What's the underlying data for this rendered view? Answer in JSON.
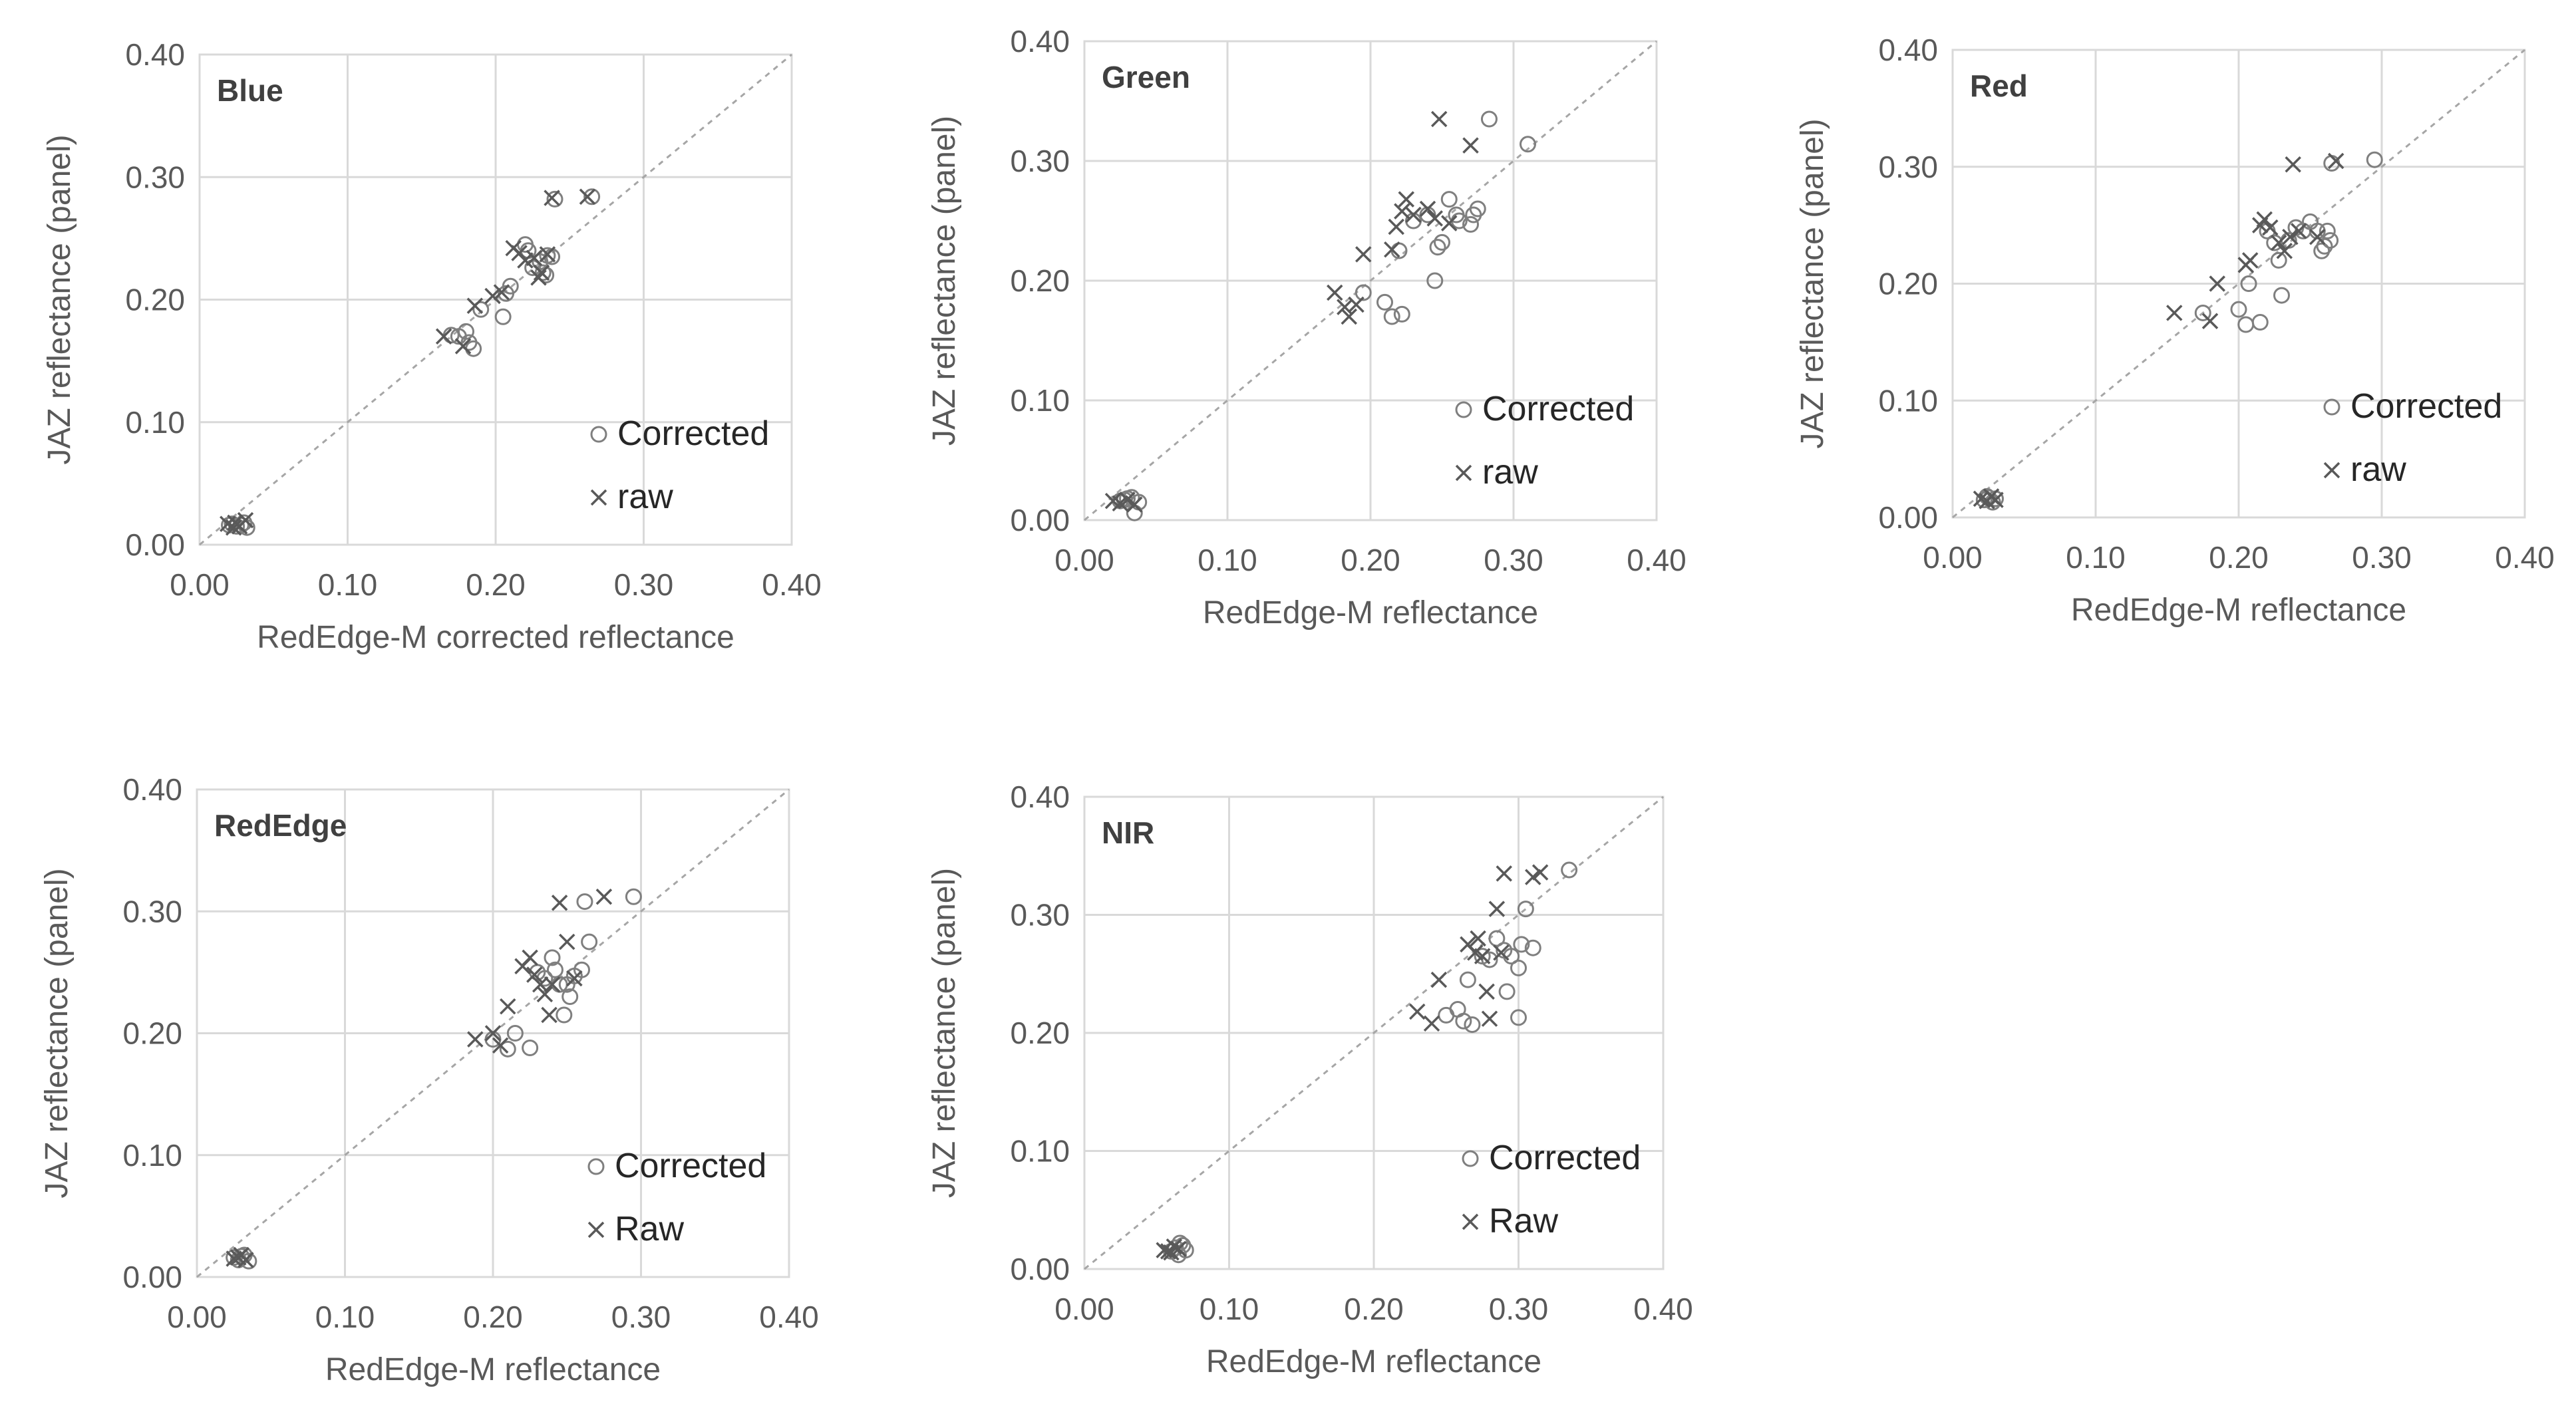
{
  "chart_data": [
    {
      "type": "scatter",
      "title": "Blue",
      "xlabel": "RedEdge-M corrected reflectance",
      "ylabel": "JAZ reflectance (panel)",
      "xlim": [
        0,
        0.4
      ],
      "ylim": [
        0,
        0.4
      ],
      "xticks": [
        "0.00",
        "0.10",
        "0.20",
        "0.30",
        "0.40"
      ],
      "yticks": [
        "0.00",
        "0.10",
        "0.20",
        "0.30",
        "0.40"
      ],
      "reference_line": "1:1",
      "legend": {
        "position": "bottom-right",
        "entries": [
          "Corrected",
          "raw"
        ]
      },
      "series": [
        {
          "name": "Corrected",
          "marker": "circle",
          "x": [
            0.02,
            0.025,
            0.03,
            0.032,
            0.022,
            0.028,
            0.17,
            0.175,
            0.18,
            0.185,
            0.182,
            0.19,
            0.205,
            0.207,
            0.21,
            0.22,
            0.222,
            0.225,
            0.23,
            0.232,
            0.235,
            0.238,
            0.234,
            0.24,
            0.265
          ],
          "y": [
            0.016,
            0.015,
            0.018,
            0.014,
            0.017,
            0.016,
            0.171,
            0.17,
            0.174,
            0.16,
            0.165,
            0.192,
            0.186,
            0.205,
            0.211,
            0.245,
            0.24,
            0.226,
            0.231,
            0.222,
            0.236,
            0.235,
            0.22,
            0.282,
            0.284
          ]
        },
        {
          "name": "raw",
          "marker": "cross",
          "x": [
            0.019,
            0.024,
            0.027,
            0.031,
            0.023,
            0.165,
            0.178,
            0.186,
            0.198,
            0.204,
            0.212,
            0.216,
            0.22,
            0.226,
            0.229,
            0.231,
            0.235,
            0.238,
            0.262
          ],
          "y": [
            0.017,
            0.018,
            0.015,
            0.02,
            0.014,
            0.17,
            0.162,
            0.195,
            0.203,
            0.206,
            0.242,
            0.238,
            0.232,
            0.234,
            0.218,
            0.222,
            0.237,
            0.283,
            0.284
          ]
        }
      ]
    },
    {
      "type": "scatter",
      "title": "Green",
      "xlabel": "RedEdge-M reflectance",
      "ylabel": "JAZ reflectance (panel)",
      "xlim": [
        0,
        0.4
      ],
      "ylim": [
        0,
        0.4
      ],
      "xticks": [
        "0.00",
        "0.10",
        "0.20",
        "0.30",
        "0.40"
      ],
      "yticks": [
        "0.00",
        "0.10",
        "0.20",
        "0.30",
        "0.40"
      ],
      "reference_line": "1:1",
      "legend": {
        "position": "bottom-right",
        "entries": [
          "Corrected",
          "raw"
        ]
      },
      "series": [
        {
          "name": "Corrected",
          "marker": "circle",
          "x": [
            0.025,
            0.03,
            0.035,
            0.038,
            0.033,
            0.028,
            0.195,
            0.21,
            0.215,
            0.22,
            0.222,
            0.23,
            0.24,
            0.245,
            0.247,
            0.25,
            0.255,
            0.26,
            0.262,
            0.27,
            0.272,
            0.275,
            0.283,
            0.31
          ],
          "y": [
            0.016,
            0.018,
            0.006,
            0.015,
            0.019,
            0.017,
            0.19,
            0.182,
            0.17,
            0.225,
            0.172,
            0.25,
            0.255,
            0.2,
            0.228,
            0.232,
            0.268,
            0.255,
            0.25,
            0.247,
            0.255,
            0.26,
            0.335,
            0.314
          ]
        },
        {
          "name": "raw",
          "marker": "cross",
          "x": [
            0.02,
            0.025,
            0.03,
            0.035,
            0.175,
            0.182,
            0.185,
            0.19,
            0.195,
            0.215,
            0.218,
            0.222,
            0.225,
            0.23,
            0.24,
            0.245,
            0.248,
            0.255,
            0.27
          ],
          "y": [
            0.016,
            0.014,
            0.017,
            0.013,
            0.19,
            0.178,
            0.17,
            0.18,
            0.222,
            0.226,
            0.245,
            0.258,
            0.268,
            0.255,
            0.26,
            0.252,
            0.335,
            0.248,
            0.313
          ]
        }
      ]
    },
    {
      "type": "scatter",
      "title": "Red",
      "xlabel": "RedEdge-M reflectance",
      "ylabel": "JAZ reflectance (panel)",
      "xlim": [
        0,
        0.4
      ],
      "ylim": [
        0,
        0.4
      ],
      "xticks": [
        "0.00",
        "0.10",
        "0.20",
        "0.30",
        "0.40"
      ],
      "yticks": [
        "0.00",
        "0.10",
        "0.20",
        "0.30",
        "0.40"
      ],
      "reference_line": "1:1",
      "legend": {
        "position": "bottom-right",
        "entries": [
          "Corrected",
          "raw"
        ]
      },
      "series": [
        {
          "name": "Corrected",
          "marker": "circle",
          "x": [
            0.022,
            0.025,
            0.028,
            0.03,
            0.024,
            0.175,
            0.2,
            0.205,
            0.207,
            0.215,
            0.22,
            0.225,
            0.228,
            0.23,
            0.235,
            0.24,
            0.245,
            0.25,
            0.255,
            0.258,
            0.26,
            0.262,
            0.264,
            0.265,
            0.295
          ],
          "y": [
            0.015,
            0.017,
            0.013,
            0.016,
            0.018,
            0.175,
            0.178,
            0.165,
            0.2,
            0.167,
            0.245,
            0.235,
            0.22,
            0.19,
            0.237,
            0.248,
            0.245,
            0.253,
            0.245,
            0.228,
            0.232,
            0.245,
            0.237,
            0.303,
            0.306
          ]
        },
        {
          "name": "raw",
          "marker": "cross",
          "x": [
            0.02,
            0.024,
            0.027,
            0.03,
            0.155,
            0.18,
            0.185,
            0.205,
            0.208,
            0.215,
            0.218,
            0.222,
            0.228,
            0.232,
            0.236,
            0.238,
            0.242,
            0.255,
            0.268
          ],
          "y": [
            0.016,
            0.014,
            0.018,
            0.015,
            0.175,
            0.168,
            0.2,
            0.216,
            0.22,
            0.25,
            0.255,
            0.248,
            0.235,
            0.228,
            0.24,
            0.302,
            0.245,
            0.24,
            0.305
          ]
        }
      ]
    },
    {
      "type": "scatter",
      "title": "RedEdge",
      "xlabel": "RedEdge-M reflectance",
      "ylabel": "JAZ reflectance (panel)",
      "xlim": [
        0,
        0.4
      ],
      "ylim": [
        0,
        0.4
      ],
      "xticks": [
        "0.00",
        "0.10",
        "0.20",
        "0.30",
        "0.40"
      ],
      "yticks": [
        "0.00",
        "0.10",
        "0.20",
        "0.30",
        "0.40"
      ],
      "reference_line": "1:1",
      "legend": {
        "position": "bottom-right",
        "entries": [
          "Corrected",
          "Raw"
        ]
      },
      "series": [
        {
          "name": "Corrected",
          "marker": "circle",
          "x": [
            0.025,
            0.028,
            0.032,
            0.035,
            0.03,
            0.2,
            0.21,
            0.215,
            0.225,
            0.23,
            0.235,
            0.24,
            0.242,
            0.245,
            0.248,
            0.25,
            0.252,
            0.255,
            0.26,
            0.265,
            0.262,
            0.295
          ],
          "y": [
            0.016,
            0.014,
            0.018,
            0.013,
            0.017,
            0.195,
            0.187,
            0.2,
            0.188,
            0.25,
            0.245,
            0.262,
            0.252,
            0.24,
            0.215,
            0.24,
            0.23,
            0.247,
            0.252,
            0.275,
            0.308,
            0.312
          ]
        },
        {
          "name": "Raw",
          "marker": "cross",
          "x": [
            0.025,
            0.03,
            0.033,
            0.028,
            0.188,
            0.2,
            0.205,
            0.21,
            0.22,
            0.225,
            0.228,
            0.232,
            0.235,
            0.238,
            0.24,
            0.245,
            0.25,
            0.255,
            0.275
          ],
          "y": [
            0.015,
            0.018,
            0.014,
            0.016,
            0.195,
            0.2,
            0.19,
            0.222,
            0.255,
            0.262,
            0.248,
            0.24,
            0.232,
            0.215,
            0.24,
            0.307,
            0.275,
            0.245,
            0.312
          ]
        }
      ]
    },
    {
      "type": "scatter",
      "title": "NIR",
      "xlabel": "RedEdge-M reflectance",
      "ylabel": "JAZ reflectance (panel)",
      "xlim": [
        0,
        0.4
      ],
      "ylim": [
        0,
        0.4
      ],
      "xticks": [
        "0.00",
        "0.10",
        "0.20",
        "0.30",
        "0.40"
      ],
      "yticks": [
        "0.00",
        "0.10",
        "0.20",
        "0.30",
        "0.40"
      ],
      "reference_line": "1:1",
      "legend": {
        "position": "bottom-right",
        "entries": [
          "Corrected",
          "Raw"
        ]
      },
      "series": [
        {
          "name": "Corrected",
          "marker": "circle",
          "x": [
            0.06,
            0.063,
            0.065,
            0.068,
            0.07,
            0.066,
            0.25,
            0.258,
            0.262,
            0.265,
            0.268,
            0.275,
            0.28,
            0.285,
            0.29,
            0.292,
            0.295,
            0.3,
            0.302,
            0.305,
            0.31,
            0.3,
            0.335
          ],
          "y": [
            0.015,
            0.018,
            0.012,
            0.02,
            0.016,
            0.022,
            0.215,
            0.22,
            0.21,
            0.245,
            0.207,
            0.265,
            0.262,
            0.28,
            0.27,
            0.235,
            0.265,
            0.255,
            0.275,
            0.305,
            0.272,
            0.213,
            0.338
          ]
        },
        {
          "name": "Raw",
          "marker": "cross",
          "x": [
            0.055,
            0.06,
            0.062,
            0.065,
            0.058,
            0.23,
            0.24,
            0.245,
            0.265,
            0.27,
            0.272,
            0.275,
            0.278,
            0.28,
            0.285,
            0.288,
            0.29,
            0.31,
            0.315
          ],
          "y": [
            0.016,
            0.014,
            0.019,
            0.017,
            0.015,
            0.218,
            0.208,
            0.245,
            0.275,
            0.268,
            0.28,
            0.265,
            0.235,
            0.212,
            0.305,
            0.268,
            0.335,
            0.332,
            0.336
          ]
        }
      ]
    }
  ]
}
